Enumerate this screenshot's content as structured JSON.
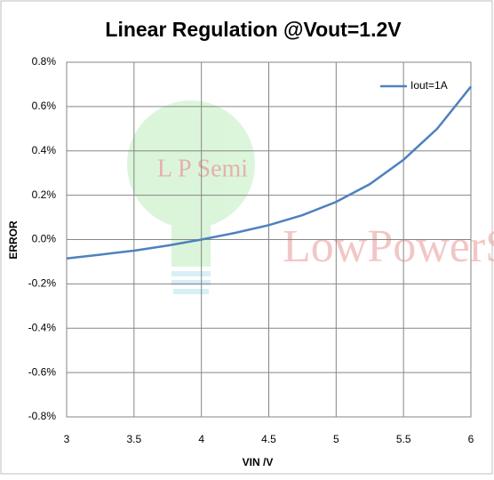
{
  "chart_data": {
    "type": "line",
    "title": "Linear Regulation @Vout=1.2V",
    "x_label": "VIN /V",
    "y_label": "ERROR",
    "watermarks": [
      "L P Semi",
      "LowPowerS"
    ],
    "x": [
      3,
      3.25,
      3.5,
      3.75,
      4,
      4.25,
      4.5,
      4.75,
      5,
      5.25,
      5.5,
      5.75,
      6
    ],
    "series": [
      {
        "name": "Iout=1A",
        "color": "#4f81bd",
        "values": [
          -0.085,
          -0.068,
          -0.05,
          -0.027,
          0.0,
          0.03,
          0.065,
          0.11,
          0.17,
          0.25,
          0.36,
          0.5,
          0.69
        ]
      }
    ],
    "xlim": [
      3,
      6
    ],
    "xticks": [
      3,
      3.5,
      4,
      4.5,
      5,
      5.5,
      6
    ],
    "ylim": [
      -0.8,
      0.8
    ],
    "yticks": [
      {
        "value": -0.8,
        "label": "-0.8%"
      },
      {
        "value": -0.6,
        "label": "-0.6%"
      },
      {
        "value": -0.4,
        "label": "-0.4%"
      },
      {
        "value": -0.2,
        "label": "-0.2%"
      },
      {
        "value": 0,
        "label": "0.0%"
      },
      {
        "value": 0.2,
        "label": "0.2%"
      },
      {
        "value": 0.4,
        "label": "0.4%"
      },
      {
        "value": 0.6,
        "label": "0.6%"
      },
      {
        "value": 0.8,
        "label": "0.8%"
      }
    ],
    "grid": true,
    "legend": "upper right"
  }
}
